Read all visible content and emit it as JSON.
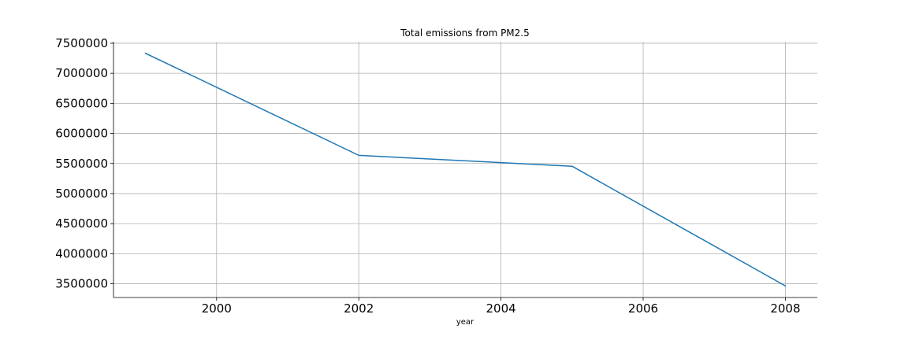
{
  "chart_data": {
    "type": "line",
    "title": "Total emissions from PM2.5",
    "xlabel": "year",
    "ylabel": "",
    "x": [
      1999,
      2002,
      2005,
      2008
    ],
    "series": [
      {
        "values": [
          7332967,
          5635780,
          5454703,
          3464206
        ]
      }
    ],
    "xlim": [
      1998.55,
      2008.45
    ],
    "ylim": [
      3271568,
      7525605
    ],
    "x_ticks": [
      2000,
      2002,
      2004,
      2006,
      2008
    ],
    "y_ticks": [
      3500000,
      4000000,
      4500000,
      5000000,
      5500000,
      6000000,
      6500000,
      7000000,
      7500000
    ],
    "x_tick_labels": [
      "2000",
      "2002",
      "2004",
      "2006",
      "2008"
    ],
    "y_tick_labels": [
      "3500000",
      "4000000",
      "4500000",
      "5000000",
      "5500000",
      "6000000",
      "6500000",
      "7000000",
      "7500000"
    ],
    "grid": true,
    "legend": "none",
    "colors": {
      "line": "#1f77b4",
      "grid": "#b0b0b0",
      "axis": "#000000"
    }
  }
}
